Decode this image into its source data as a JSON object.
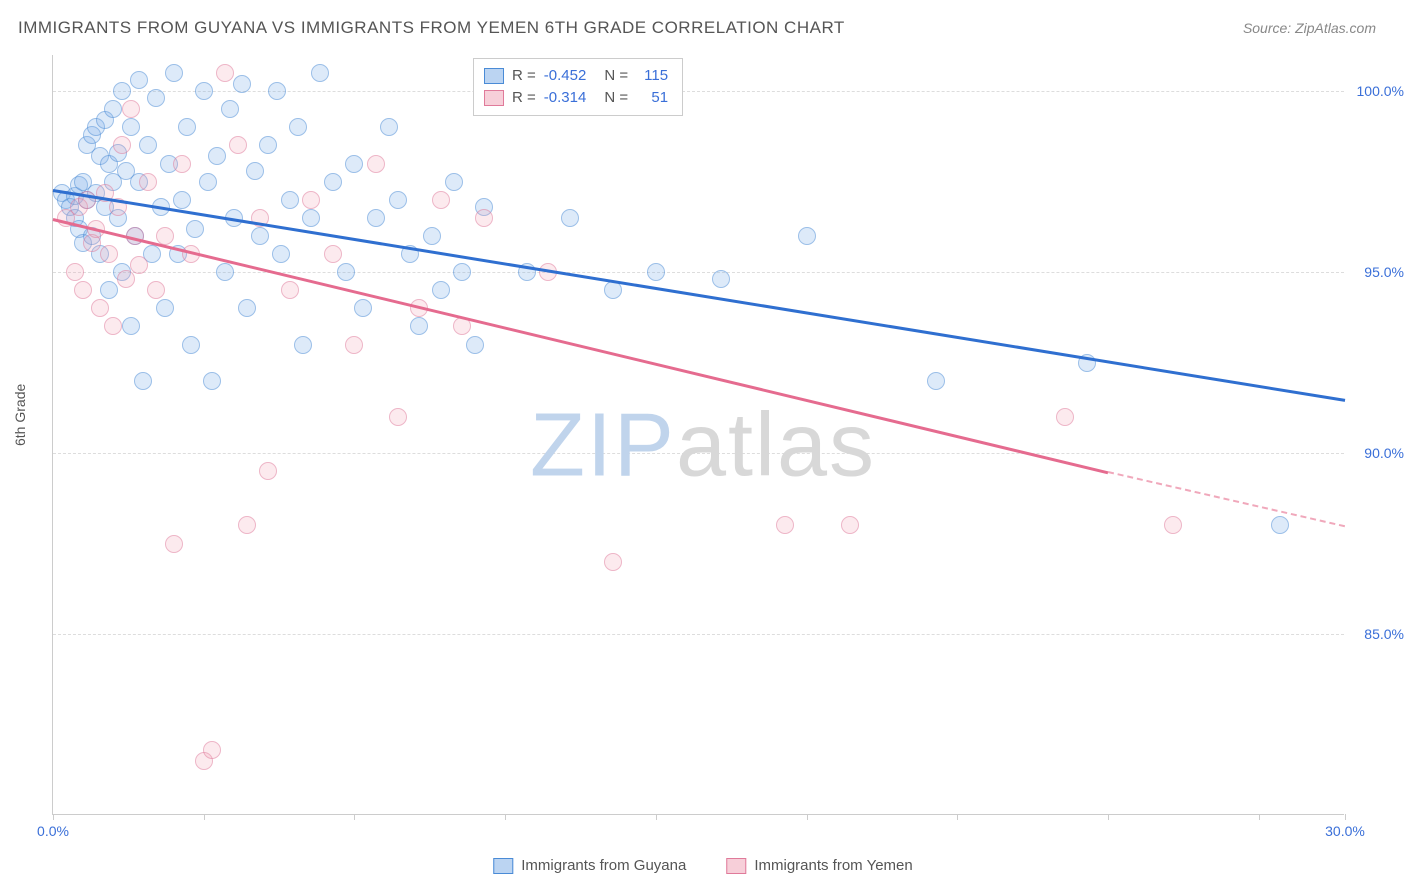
{
  "title": "IMMIGRANTS FROM GUYANA VS IMMIGRANTS FROM YEMEN 6TH GRADE CORRELATION CHART",
  "source": "Source: ZipAtlas.com",
  "y_axis_label": "6th Grade",
  "watermark_zip": "ZIP",
  "watermark_rest": "atlas",
  "chart": {
    "type": "scatter",
    "background_color": "#ffffff",
    "grid_color": "#dddddd",
    "axis_color": "#cccccc",
    "xlim": [
      0,
      30
    ],
    "ylim": [
      80,
      101
    ],
    "x_ticks": [
      0,
      3.5,
      7,
      10.5,
      14,
      17.5,
      21,
      24.5,
      28,
      30
    ],
    "x_tick_labels": {
      "0": "0.0%",
      "30": "30.0%"
    },
    "y_ticks": [
      85,
      90,
      95,
      100
    ],
    "y_tick_labels": {
      "85": "85.0%",
      "90": "90.0%",
      "95": "95.0%",
      "100": "100.0%"
    },
    "marker_radius": 9,
    "series": [
      {
        "name": "Immigrants from Guyana",
        "color_fill": "rgba(120,170,230,0.45)",
        "color_stroke": "#4a8bd6",
        "R": "-0.452",
        "N": "115",
        "trend": {
          "x1": 0,
          "y1": 97.3,
          "x2": 30,
          "y2": 91.5,
          "color": "#2f6fd0",
          "width": 2.5
        },
        "points": [
          [
            0.2,
            97.2
          ],
          [
            0.3,
            97.0
          ],
          [
            0.4,
            96.8
          ],
          [
            0.5,
            97.1
          ],
          [
            0.5,
            96.5
          ],
          [
            0.6,
            97.4
          ],
          [
            0.6,
            96.2
          ],
          [
            0.7,
            97.5
          ],
          [
            0.7,
            95.8
          ],
          [
            0.8,
            98.5
          ],
          [
            0.8,
            97.0
          ],
          [
            0.9,
            98.8
          ],
          [
            0.9,
            96.0
          ],
          [
            1.0,
            99.0
          ],
          [
            1.0,
            97.2
          ],
          [
            1.1,
            98.2
          ],
          [
            1.1,
            95.5
          ],
          [
            1.2,
            99.2
          ],
          [
            1.2,
            96.8
          ],
          [
            1.3,
            98.0
          ],
          [
            1.3,
            94.5
          ],
          [
            1.4,
            97.5
          ],
          [
            1.4,
            99.5
          ],
          [
            1.5,
            96.5
          ],
          [
            1.5,
            98.3
          ],
          [
            1.6,
            100.0
          ],
          [
            1.6,
            95.0
          ],
          [
            1.7,
            97.8
          ],
          [
            1.8,
            99.0
          ],
          [
            1.8,
            93.5
          ],
          [
            1.9,
            96.0
          ],
          [
            2.0,
            100.3
          ],
          [
            2.0,
            97.5
          ],
          [
            2.1,
            92.0
          ],
          [
            2.2,
            98.5
          ],
          [
            2.3,
            95.5
          ],
          [
            2.4,
            99.8
          ],
          [
            2.5,
            96.8
          ],
          [
            2.6,
            94.0
          ],
          [
            2.7,
            98.0
          ],
          [
            2.8,
            100.5
          ],
          [
            2.9,
            95.5
          ],
          [
            3.0,
            97.0
          ],
          [
            3.1,
            99.0
          ],
          [
            3.2,
            93.0
          ],
          [
            3.3,
            96.2
          ],
          [
            3.5,
            100.0
          ],
          [
            3.6,
            97.5
          ],
          [
            3.7,
            92.0
          ],
          [
            3.8,
            98.2
          ],
          [
            4.0,
            95.0
          ],
          [
            4.1,
            99.5
          ],
          [
            4.2,
            96.5
          ],
          [
            4.4,
            100.2
          ],
          [
            4.5,
            94.0
          ],
          [
            4.7,
            97.8
          ],
          [
            4.8,
            96.0
          ],
          [
            5.0,
            98.5
          ],
          [
            5.2,
            100.0
          ],
          [
            5.3,
            95.5
          ],
          [
            5.5,
            97.0
          ],
          [
            5.7,
            99.0
          ],
          [
            5.8,
            93.0
          ],
          [
            6.0,
            96.5
          ],
          [
            6.2,
            100.5
          ],
          [
            6.5,
            97.5
          ],
          [
            6.8,
            95.0
          ],
          [
            7.0,
            98.0
          ],
          [
            7.2,
            94.0
          ],
          [
            7.5,
            96.5
          ],
          [
            7.8,
            99.0
          ],
          [
            8.0,
            97.0
          ],
          [
            8.3,
            95.5
          ],
          [
            8.5,
            93.5
          ],
          [
            8.8,
            96.0
          ],
          [
            9.0,
            94.5
          ],
          [
            9.3,
            97.5
          ],
          [
            9.5,
            95.0
          ],
          [
            9.8,
            93.0
          ],
          [
            10.0,
            96.8
          ],
          [
            11.0,
            95.0
          ],
          [
            12.0,
            96.5
          ],
          [
            13.0,
            94.5
          ],
          [
            14.0,
            95.0
          ],
          [
            15.5,
            94.8
          ],
          [
            17.5,
            96.0
          ],
          [
            20.5,
            92.0
          ],
          [
            24.0,
            92.5
          ],
          [
            28.5,
            88.0
          ]
        ]
      },
      {
        "name": "Immigrants from Yemen",
        "color_fill": "rgba(240,160,180,0.4)",
        "color_stroke": "#e07a9a",
        "R": "-0.314",
        "N": "51",
        "trend": {
          "x1": 0,
          "y1": 96.5,
          "x2": 24.5,
          "y2": 89.5,
          "color": "#e56b8f",
          "width": 2.5,
          "dash_from_x": 24.5,
          "dash_to_x": 30,
          "dash_y2": 88.0
        },
        "points": [
          [
            0.3,
            96.5
          ],
          [
            0.5,
            95.0
          ],
          [
            0.6,
            96.8
          ],
          [
            0.7,
            94.5
          ],
          [
            0.8,
            97.0
          ],
          [
            0.9,
            95.8
          ],
          [
            1.0,
            96.2
          ],
          [
            1.1,
            94.0
          ],
          [
            1.2,
            97.2
          ],
          [
            1.3,
            95.5
          ],
          [
            1.4,
            93.5
          ],
          [
            1.5,
            96.8
          ],
          [
            1.6,
            98.5
          ],
          [
            1.7,
            94.8
          ],
          [
            1.8,
            99.5
          ],
          [
            1.9,
            96.0
          ],
          [
            2.0,
            95.2
          ],
          [
            2.2,
            97.5
          ],
          [
            2.4,
            94.5
          ],
          [
            2.6,
            96.0
          ],
          [
            2.8,
            87.5
          ],
          [
            3.0,
            98.0
          ],
          [
            3.2,
            95.5
          ],
          [
            3.5,
            81.5
          ],
          [
            3.7,
            81.8
          ],
          [
            4.0,
            100.5
          ],
          [
            4.3,
            98.5
          ],
          [
            4.5,
            88.0
          ],
          [
            4.8,
            96.5
          ],
          [
            5.0,
            89.5
          ],
          [
            5.5,
            94.5
          ],
          [
            6.0,
            97.0
          ],
          [
            6.5,
            95.5
          ],
          [
            7.0,
            93.0
          ],
          [
            7.5,
            98.0
          ],
          [
            8.0,
            91.0
          ],
          [
            8.5,
            94.0
          ],
          [
            9.0,
            97.0
          ],
          [
            9.5,
            93.5
          ],
          [
            10.0,
            96.5
          ],
          [
            11.5,
            95.0
          ],
          [
            13.0,
            87.0
          ],
          [
            17.0,
            88.0
          ],
          [
            18.5,
            88.0
          ],
          [
            23.5,
            91.0
          ],
          [
            26.0,
            88.0
          ]
        ]
      }
    ],
    "legend_top": {
      "rows": [
        {
          "swatch": "blue",
          "r_label": "R =",
          "r_val": "-0.452",
          "n_label": "N =",
          "n_val": "115"
        },
        {
          "swatch": "pink",
          "r_label": "R =",
          "r_val": "-0.314",
          "n_label": "N =",
          "n_val": "51"
        }
      ]
    },
    "legend_bottom": [
      {
        "swatch": "blue",
        "label": "Immigrants from Guyana"
      },
      {
        "swatch": "pink",
        "label": "Immigrants from Yemen"
      }
    ]
  }
}
